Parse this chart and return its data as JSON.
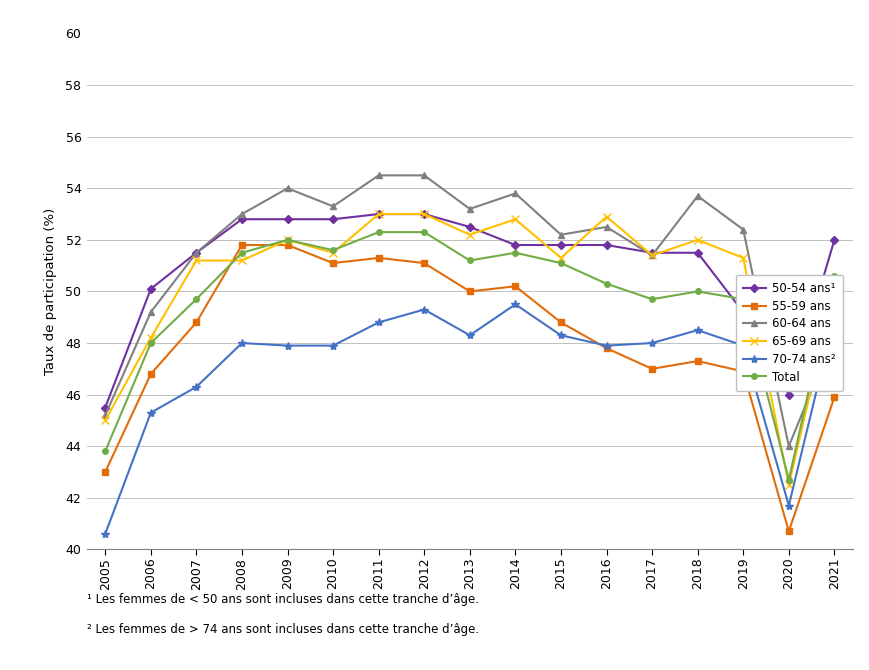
{
  "years": [
    2005,
    2006,
    2007,
    2008,
    2009,
    2010,
    2011,
    2012,
    2013,
    2014,
    2015,
    2016,
    2017,
    2018,
    2019,
    2020,
    2021
  ],
  "series": {
    "50-54 ans¹": {
      "values": [
        45.5,
        50.1,
        51.5,
        52.8,
        52.8,
        52.8,
        53.0,
        53.0,
        52.5,
        51.8,
        51.8,
        51.8,
        51.5,
        51.5,
        49.2,
        46.0,
        52.0
      ],
      "color": "#7030A0",
      "marker": "D",
      "markersize": 4,
      "linestyle": "-"
    },
    "55-59 ans": {
      "values": [
        43.0,
        46.8,
        48.8,
        51.8,
        51.8,
        51.1,
        51.3,
        51.1,
        50.0,
        50.2,
        48.8,
        47.8,
        47.0,
        47.3,
        46.9,
        40.7,
        45.9
      ],
      "color": "#E36C09",
      "marker": "s",
      "markersize": 4,
      "linestyle": "-"
    },
    "60-64 ans": {
      "values": [
        45.2,
        49.2,
        51.5,
        53.0,
        54.0,
        53.3,
        54.5,
        54.5,
        53.2,
        53.8,
        52.2,
        52.5,
        51.4,
        53.7,
        52.4,
        44.0,
        48.3
      ],
      "color": "#808080",
      "marker": "^",
      "markersize": 5,
      "linestyle": "-"
    },
    "65-69 ans": {
      "values": [
        45.0,
        48.2,
        51.2,
        51.2,
        52.0,
        51.5,
        53.0,
        53.0,
        52.2,
        52.8,
        51.3,
        52.9,
        51.4,
        52.0,
        51.3,
        42.5,
        50.1
      ],
      "color": "#FFC000",
      "marker": "x",
      "markersize": 6,
      "linestyle": "-"
    },
    "70-74 ans²": {
      "values": [
        40.6,
        45.3,
        46.3,
        48.0,
        47.9,
        47.9,
        48.8,
        49.3,
        48.3,
        49.5,
        48.3,
        47.9,
        48.0,
        48.5,
        47.9,
        41.7,
        49.0
      ],
      "color": "#4472C4",
      "marker": "*",
      "markersize": 6,
      "linestyle": "-"
    },
    "Total": {
      "values": [
        43.8,
        48.0,
        49.7,
        51.5,
        52.0,
        51.6,
        52.3,
        52.3,
        51.2,
        51.5,
        51.1,
        50.3,
        49.7,
        50.0,
        49.7,
        42.7,
        50.6
      ],
      "color": "#70AD47",
      "marker": "o",
      "markersize": 4,
      "linestyle": "-"
    }
  },
  "ylabel": "Taux de participation (%)",
  "ylim": [
    40,
    60
  ],
  "yticks": [
    40,
    42,
    44,
    46,
    48,
    50,
    52,
    54,
    56,
    58,
    60
  ],
  "footnote1": "¹ Les femmes de < 50 ans sont incluses dans cette tranche d’âge.",
  "footnote2": "² Les femmes de > 74 ans sont incluses dans cette tranche d’âge.",
  "background_color": "#FFFFFF",
  "plot_bg_color": "#FFFFFF",
  "grid_color": "#C0C0C0",
  "border_color": "#808080"
}
